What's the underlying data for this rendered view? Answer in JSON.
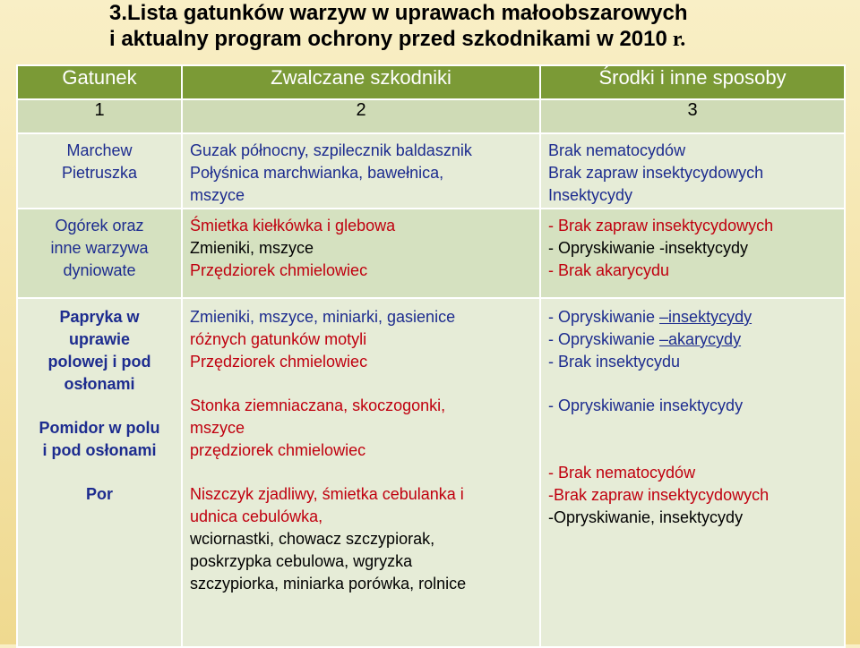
{
  "title": {
    "line1": "3.Lista gatunków warzyw w uprawach małoobszarowych",
    "line2": "i aktualny program ochrony przed szkodnikami w 2010",
    "line2_suffix": " r."
  },
  "table": {
    "headers": [
      "Gatunek",
      "Zwalczane szkodniki",
      "Środki i inne sposoby"
    ],
    "numbers": [
      "1",
      "2",
      "3"
    ],
    "row1": {
      "species": [
        "Marchew",
        "Pietruszka"
      ],
      "pests": [
        "Guzak północny, szpilecznik baldasznik",
        "Połyśnica marchwianka, bawełnica,",
        "mszyce"
      ],
      "means": [
        "Brak nematocydów",
        "Brak zapraw insektycydowych",
        "Insektycydy"
      ]
    },
    "row2": {
      "species": [
        "Ogórek oraz",
        "inne warzywa",
        "dyniowate"
      ],
      "pests": [
        "Śmietka kiełkówka i glebowa",
        "Zmieniki, mszyce",
        "Przędziorek chmielowiec"
      ],
      "means": [
        "- Brak zapraw insektycydowych",
        "- Opryskiwanie -insektycydy",
        "- Brak akarycydu"
      ]
    },
    "row3": {
      "species_a": [
        "Papryka  w",
        "uprawie",
        "polowej i pod",
        "osłonami"
      ],
      "species_b": [
        "Pomidor w polu",
        "i pod osłonami"
      ],
      "species_c": "Por",
      "pests_a": [
        "Zmieniki, mszyce, miniarki, gasienice",
        "różnych gatunków motyli",
        "Przędziorek chmielowiec"
      ],
      "pests_b": [
        "Stonka ziemniaczana, skoczogonki,",
        "mszyce",
        "przędziorek chmielowiec"
      ],
      "pests_c_red": [
        "Niszczyk zjadliwy, śmietka cebulanka i",
        "udnica cebulówka,"
      ],
      "pests_c_black": [
        "wciornastki, chowacz szczypiorak,",
        "poskrzypka cebulowa, wgryzka",
        "szczypiorka, miniarka porówka, rolnice"
      ],
      "means_a": {
        "l1_prefix": "- Opryskiwanie ",
        "l1_ul": "–insektycydy",
        "l2_prefix": "- Opryskiwanie ",
        "l2_ul": "–akarycydy",
        "l3": "- Brak insektycydu"
      },
      "means_b": "- Opryskiwanie insektycydy",
      "means_c_red": [
        "- Brak nematocydów",
        "-Brak zapraw insektycydowych"
      ],
      "means_c_black": "-Opryskiwanie, insektycydy"
    }
  },
  "colors": {
    "header_bg": "#7b9a36",
    "number_row_bg": "#cfdbb6",
    "light_row_bg": "#e6ecd7",
    "mid_row_bg": "#d5e1c0",
    "species_text": "#1d2c8f",
    "red_text": "#c0000f"
  }
}
